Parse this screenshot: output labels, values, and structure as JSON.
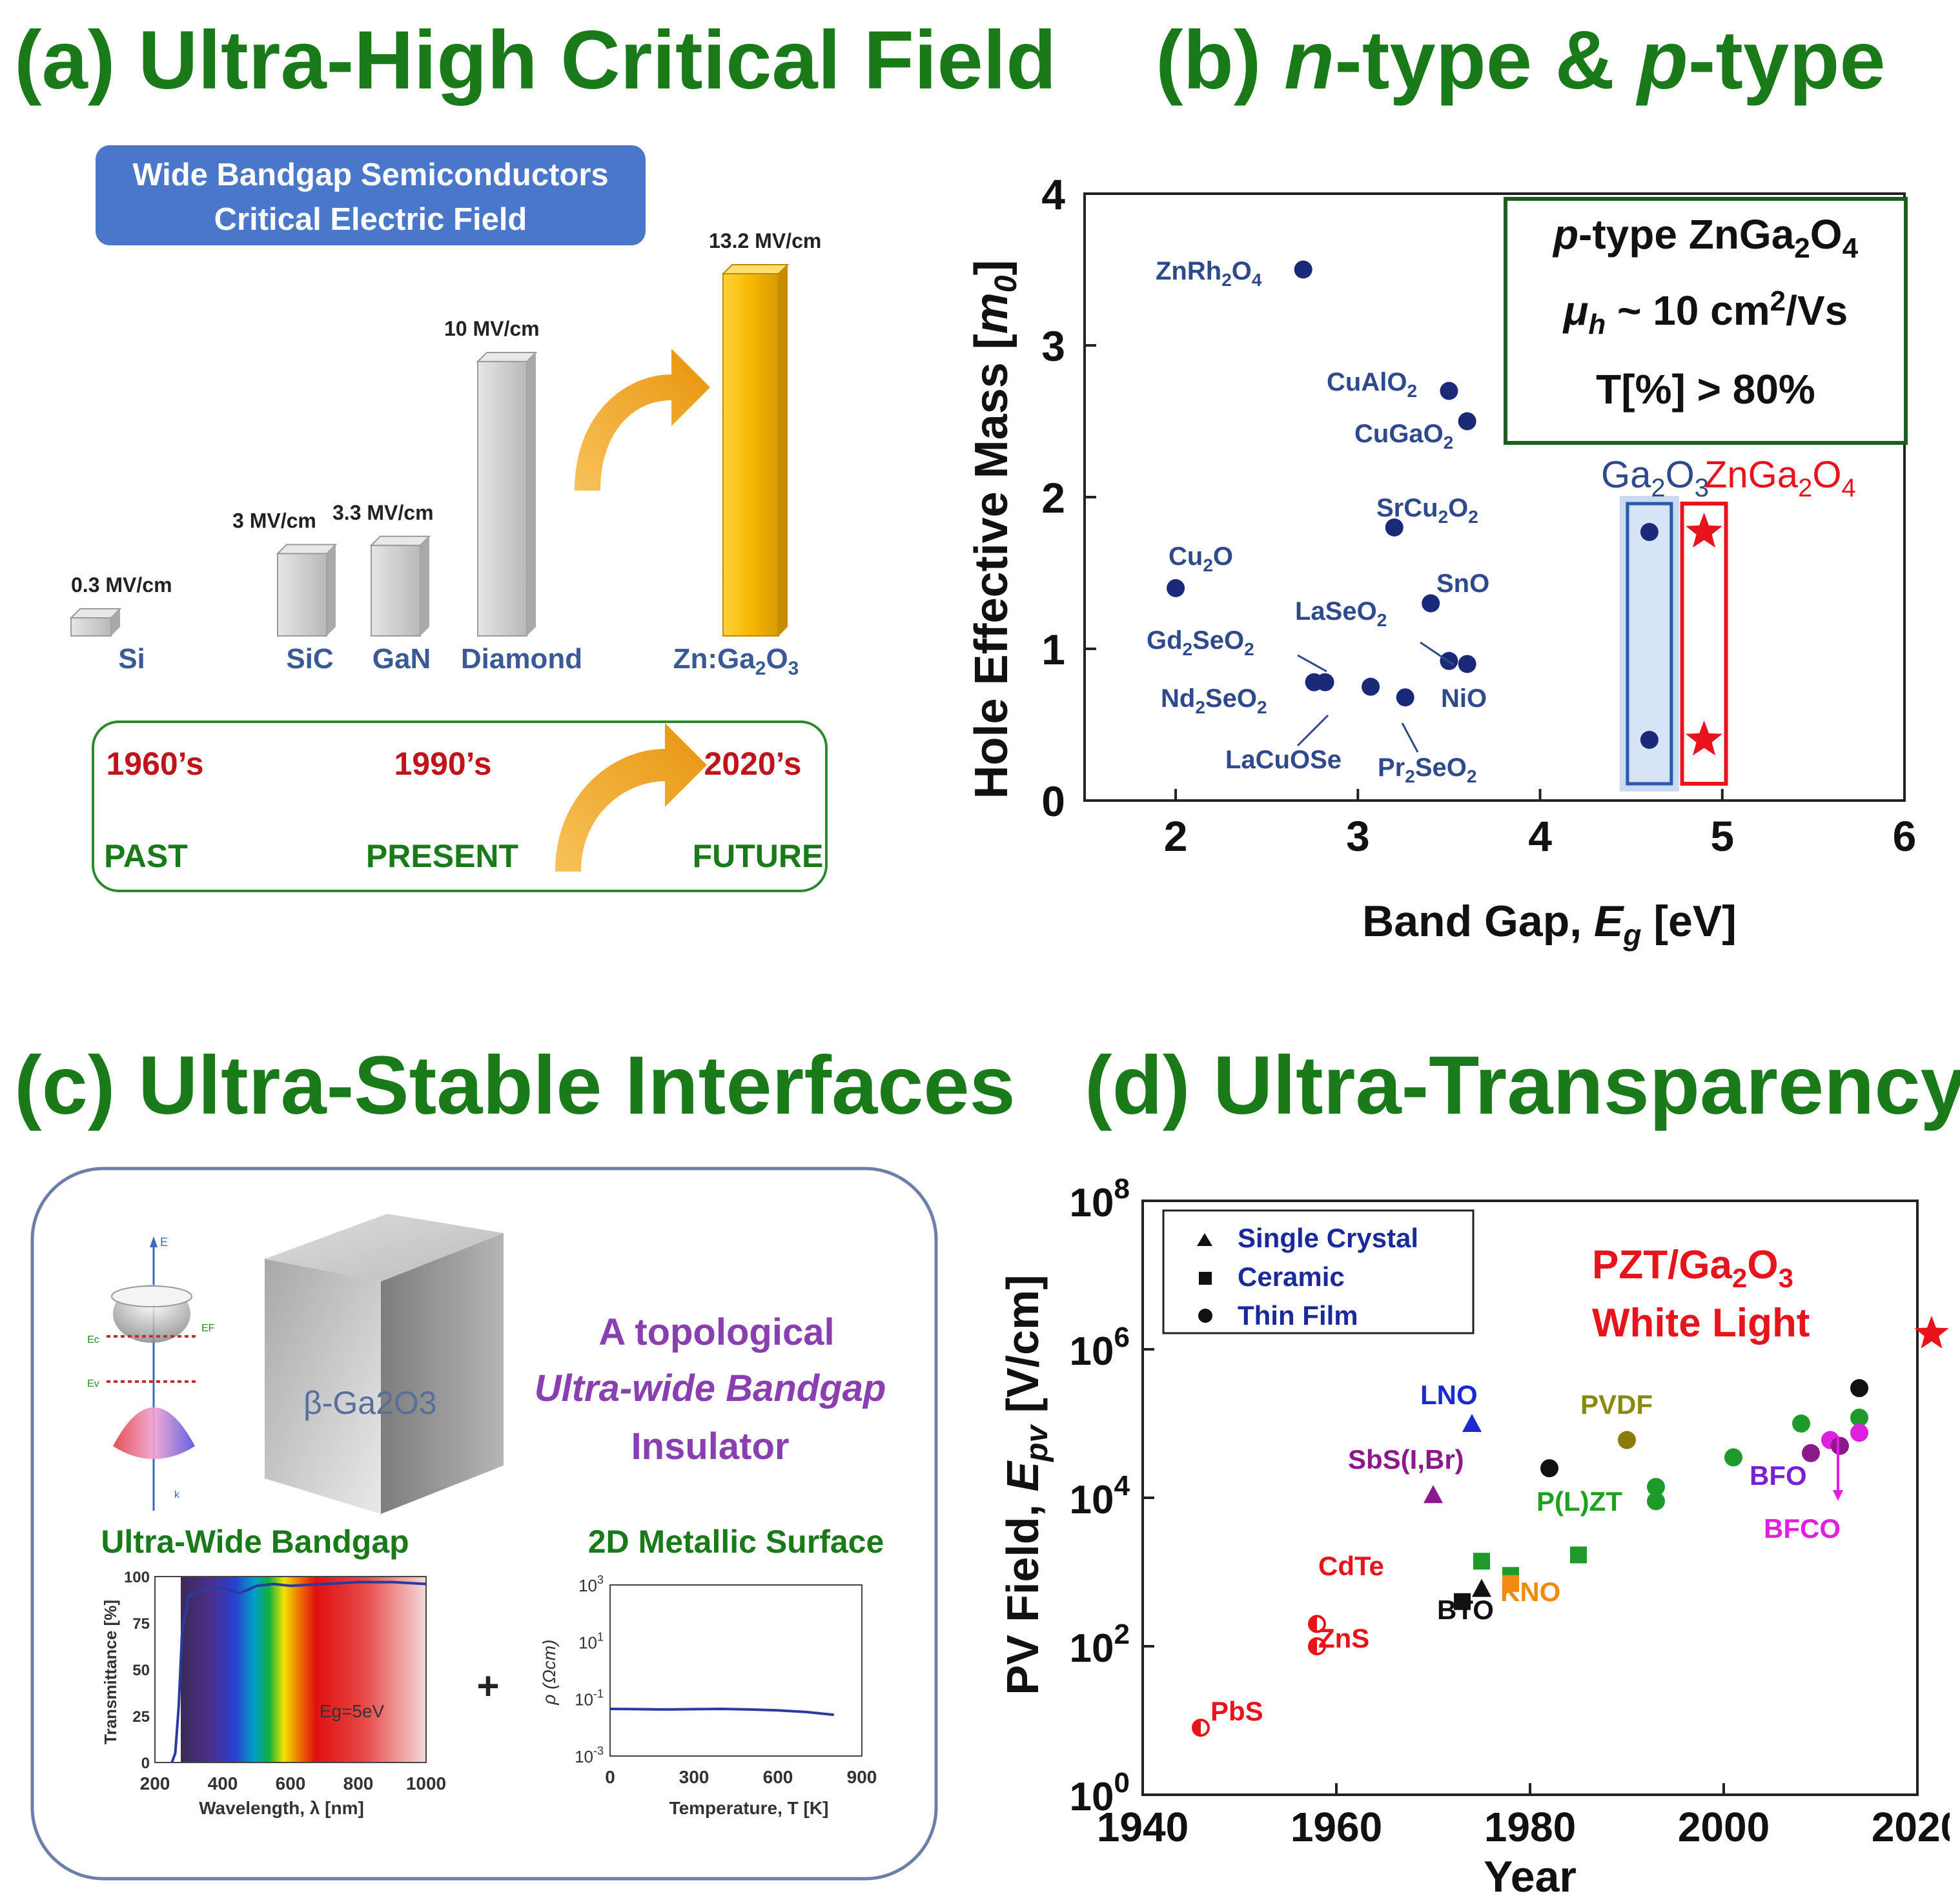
{
  "colors": {
    "title_green": "#1a7a1a",
    "navy": "#1b2a78",
    "label_blue": "#2f4a8c",
    "red": "#e8141b",
    "orange": "#f0a020",
    "gold": "#f5b800",
    "purple": "#7b3fb0",
    "bar_gray": "#c8c8c8"
  },
  "panel_a": {
    "title": "(a) Ultra-High Critical Field",
    "box_line1": "Wide Bandgap Semiconductors",
    "box_line2": "Critical Electric Field",
    "chart_data": {
      "type": "bar",
      "title": "Wide Bandgap Semiconductors Critical Electric Field",
      "unit": "MV/cm",
      "categories": [
        "Si",
        "SiC",
        "GaN",
        "Diamond",
        "Zn:Ga2O3"
      ],
      "values": [
        0.3,
        3,
        3.3,
        10,
        13.2
      ],
      "value_labels": [
        "0.3 MV/cm",
        "3 MV/cm",
        "3.3 MV/cm",
        "10 MV/cm",
        "13.2 MV/cm"
      ]
    },
    "cat_labels": [
      "Si",
      "SiC",
      "GaN",
      "Diamond"
    ],
    "zn_label_a": "Zn:Ga",
    "zn_label_sub1": "2",
    "zn_label_b": "O",
    "zn_label_sub2": "3",
    "timeline": {
      "decades": [
        "1960’s",
        "1990’s",
        "2020’s"
      ],
      "eras": [
        "PAST",
        "PRESENT",
        "FUTURE"
      ]
    }
  },
  "panel_b": {
    "title_a": "(b) ",
    "title_n": "n",
    "title_mid": "-type & ",
    "title_p": "p",
    "title_end": "-type",
    "chart_data": {
      "type": "scatter",
      "xlabel": "Band Gap, Eg [eV]",
      "ylabel": "Hole Effective Mass [m0]",
      "xlim": [
        1.5,
        6
      ],
      "ylim": [
        0,
        4
      ],
      "xticks": [
        2,
        3,
        4,
        5,
        6
      ],
      "yticks": [
        0,
        1,
        2,
        3,
        4
      ],
      "series": [
        {
          "name": "oxides",
          "marker": "circle",
          "points": [
            {
              "label": "ZnRh2O4",
              "x": 2.7,
              "y": 3.5
            },
            {
              "label": "CuAlO2",
              "x": 3.5,
              "y": 2.7
            },
            {
              "label": "CuGaO2",
              "x": 3.6,
              "y": 2.5
            },
            {
              "label": "SrCu2O2",
              "x": 3.2,
              "y": 1.8
            },
            {
              "label": "Cu2O",
              "x": 2.0,
              "y": 1.4
            },
            {
              "label": "SnO",
              "x": 3.4,
              "y": 1.3
            },
            {
              "label": "LaSeO2",
              "x": 3.5,
              "y": 0.92
            },
            {
              "label": "NiO",
              "x": 3.6,
              "y": 0.9
            },
            {
              "label": "Gd2SeO2",
              "x": 2.82,
              "y": 0.78
            },
            {
              "label": "Nd2SeO2",
              "x": 2.76,
              "y": 0.78
            },
            {
              "label": "LaCuOSe",
              "x": 3.07,
              "y": 0.75
            },
            {
              "label": "Pr2SeO2",
              "x": 3.26,
              "y": 0.68
            }
          ]
        },
        {
          "name": "Ga2O3",
          "marker": "circle",
          "points": [
            {
              "x": 4.6,
              "y": 1.77
            },
            {
              "x": 4.6,
              "y": 0.4
            }
          ]
        },
        {
          "name": "ZnGa2O4",
          "marker": "star",
          "points": [
            {
              "x": 4.9,
              "y": 1.77
            },
            {
              "x": 4.9,
              "y": 0.4
            }
          ]
        }
      ]
    },
    "xlabel_a": "Band Gap, ",
    "xlabel_e": "E",
    "xlabel_sub": "g",
    "xlabel_b": " [eV]",
    "ylabel_a": "Hole Effective Mass [",
    "ylabel_m": "m",
    "ylabel_sub": "0",
    "ylabel_b": "]",
    "inset_line1_p": "p",
    "inset_line1_rest": "-type ZnGa",
    "inset_line1_sub1": "2",
    "inset_line1_o": "O",
    "inset_line1_sub2": "4",
    "inset_mu": "μ",
    "inset_mu_sub": "h",
    "inset_line2_rest": " ~ 10 cm",
    "inset_line2_sup": "2",
    "inset_line2_end": "/Vs",
    "inset_line3": "T[%] > 80%",
    "legend_ga2o3_a": "Ga",
    "legend_ga2o3_s1": "2",
    "legend_ga2o3_b": "O",
    "legend_ga2o3_s2": "3",
    "legend_zn_a": "ZnGa",
    "legend_zn_s1": "2",
    "legend_zn_b": "O",
    "legend_zn_s2": "4",
    "pt_labels": {
      "ZnRh": "ZnRh",
      "ZnRh_s1": "2",
      "ZnRh_o": "O",
      "ZnRh_s2": "4",
      "CuAl": "CuAlO",
      "CuAl_s": "2",
      "CuGa": "CuGaO",
      "CuGa_s": "2",
      "SrCu": "SrCu",
      "SrCu_s1": "2",
      "SrCu_o": "O",
      "SrCu_s2": "2",
      "Cu2O_a": "Cu",
      "Cu2O_s": "2",
      "Cu2O_b": "O",
      "SnO": "SnO",
      "LaSe": "LaSeO",
      "LaSe_s": "2",
      "Gd_a": "Gd",
      "Gd_s1": "2",
      "Gd_b": "SeO",
      "Gd_s2": "2",
      "Nd_a": "Nd",
      "Nd_s1": "2",
      "Nd_b": "SeO",
      "Nd_s2": "2",
      "NiO": "NiO",
      "LaCuOSe": "LaCuOSe",
      "Pr_a": "Pr",
      "Pr_s1": "2",
      "Pr_b": "SeO",
      "Pr_s2": "2"
    }
  },
  "panel_c": {
    "title": "(c) Ultra-Stable Interfaces",
    "cube_label": "β-Ga2O3",
    "topo_line1": "A topological",
    "topo_line2": "Ultra-wide Bandgap",
    "topo_line3": "Insulator",
    "uwb_title": "Ultra-Wide Bandgap",
    "surface_title": "2D Metallic Surface",
    "plus": "+",
    "trans_chart": {
      "type": "line",
      "xlabel": "Wavelength, λ [nm]",
      "ylabel": "Transmittance [%]",
      "xlim": [
        200,
        1000
      ],
      "ylim": [
        0,
        100
      ],
      "xticks": [
        200,
        400,
        600,
        800,
        1000
      ],
      "yticks": [
        0,
        25,
        50,
        75,
        100
      ],
      "annotation": "Eg=5eV",
      "x": [
        250,
        260,
        270,
        280,
        300,
        350,
        400,
        450,
        500,
        550,
        600,
        700,
        800,
        900,
        1000
      ],
      "y": [
        0,
        5,
        30,
        70,
        90,
        93,
        94,
        91,
        95,
        96,
        95,
        96,
        97,
        97,
        96
      ]
    },
    "rho_chart": {
      "type": "line",
      "xlabel": "Temperature, T [K]",
      "ylabel": "ρ (Ωcm)",
      "xlim": [
        0,
        900
      ],
      "ylim_log10": [
        -3,
        3
      ],
      "xticks": [
        0,
        300,
        600,
        900
      ],
      "ytick_exps": [
        3,
        1,
        -1,
        -3
      ],
      "x": [
        0,
        100,
        200,
        300,
        400,
        500,
        600,
        700,
        800
      ],
      "y": [
        0.045,
        0.044,
        0.043,
        0.044,
        0.045,
        0.043,
        0.04,
        0.035,
        0.028
      ]
    },
    "band_labels": {
      "e": "E",
      "ec": "Ec",
      "ef": "EF",
      "ev": "Ev",
      "k": "k"
    }
  },
  "panel_d": {
    "title": "(d) Ultra-Transparency",
    "chart_data": {
      "type": "scatter",
      "xlabel": "Year",
      "ylabel": "PV Field, Epv [V/cm]",
      "xlim": [
        1940,
        2020
      ],
      "ylim_log10": [
        0,
        8
      ],
      "xticks": [
        1940,
        1960,
        1980,
        2000,
        2020
      ],
      "ytick_exps": [
        0,
        2,
        4,
        6,
        8
      ],
      "legend": [
        "Single Crystal",
        "Ceramic",
        "Thin Film"
      ],
      "points": [
        {
          "label": "PbS",
          "x": 1946,
          "y": 8,
          "marker": "half-circle",
          "color": "red"
        },
        {
          "label": "CdTe",
          "x": 1958,
          "y": 200,
          "marker": "half-circle",
          "color": "red"
        },
        {
          "label": "ZnS",
          "x": 1958,
          "y": 100,
          "marker": "half-circle",
          "color": "red"
        },
        {
          "label": "BTO",
          "x": 1973,
          "y": 400,
          "marker": "square",
          "color": "black"
        },
        {
          "label": "BTO",
          "x": 1975,
          "y": 600,
          "marker": "triangle",
          "color": "black"
        },
        {
          "label": "",
          "x": 1975,
          "y": 1400,
          "marker": "square",
          "color": "green"
        },
        {
          "label": "",
          "x": 1978,
          "y": 900,
          "marker": "square",
          "color": "green"
        },
        {
          "label": "KNO",
          "x": 1978,
          "y": 700,
          "marker": "square",
          "color": "orange"
        },
        {
          "label": "SbS(I,Br)",
          "x": 1970,
          "y": 11000,
          "marker": "triangle",
          "color": "purple"
        },
        {
          "label": "LNO",
          "x": 1974,
          "y": 100000,
          "marker": "triangle",
          "color": "blue"
        },
        {
          "label": "",
          "x": 1982,
          "y": 25000,
          "marker": "circle",
          "color": "black"
        },
        {
          "label": "",
          "x": 1985,
          "y": 1700,
          "marker": "square",
          "color": "green"
        },
        {
          "label": "PVDF",
          "x": 1990,
          "y": 60000,
          "marker": "circle",
          "color": "olive"
        },
        {
          "label": "P(L)ZT",
          "x": 1993,
          "y": 9000,
          "marker": "circle",
          "color": "green"
        },
        {
          "label": "",
          "x": 1993,
          "y": 14000,
          "marker": "circle",
          "color": "green"
        },
        {
          "label": "",
          "x": 2001,
          "y": 35000,
          "marker": "circle",
          "color": "green"
        },
        {
          "label": "",
          "x": 2008,
          "y": 100000,
          "marker": "circle",
          "color": "green"
        },
        {
          "label": "BFO",
          "x": 2009,
          "y": 40000,
          "marker": "circle",
          "color": "purple"
        },
        {
          "label": "",
          "x": 2011,
          "y": 60000,
          "marker": "circle",
          "color": "magenta"
        },
        {
          "label": "",
          "x": 2012,
          "y": 50000,
          "marker": "circle",
          "color": "purple"
        },
        {
          "label": "",
          "x": 2014,
          "y": 300000,
          "marker": "circle",
          "color": "black"
        },
        {
          "label": "",
          "x": 2014,
          "y": 120000,
          "marker": "circle",
          "color": "green"
        },
        {
          "label": "BFCO",
          "x": 2014,
          "y": 75000,
          "marker": "circle",
          "color": "magenta"
        },
        {
          "label": "PZT/Ga2O3 White Light",
          "x": 2018,
          "y": 1000000,
          "marker": "star",
          "color": "red"
        }
      ]
    },
    "legend_items": [
      "Single Crystal",
      "Ceramic",
      "Thin Film"
    ],
    "ann_pzt_a": "PZT/Ga",
    "ann_pzt_s1": "2",
    "ann_pzt_b": "O",
    "ann_pzt_s2": "3",
    "ann_white": "White Light",
    "xlabel": "Year",
    "ylabel_a": "PV Field, ",
    "ylabel_e": "E",
    "ylabel_sub": "pv",
    "ylabel_b": " [V/cm]",
    "pt_labels": {
      "lno": "LNO",
      "pvdf": "PVDF",
      "sbs": "SbS(I,Br)",
      "bfo": "BFO",
      "plzt": "P(L)ZT",
      "bfco": "BFCO",
      "cdte": "CdTe",
      "kno": "KNO",
      "bto": "BTO",
      "zns": "ZnS",
      "pbs": "PbS"
    }
  }
}
